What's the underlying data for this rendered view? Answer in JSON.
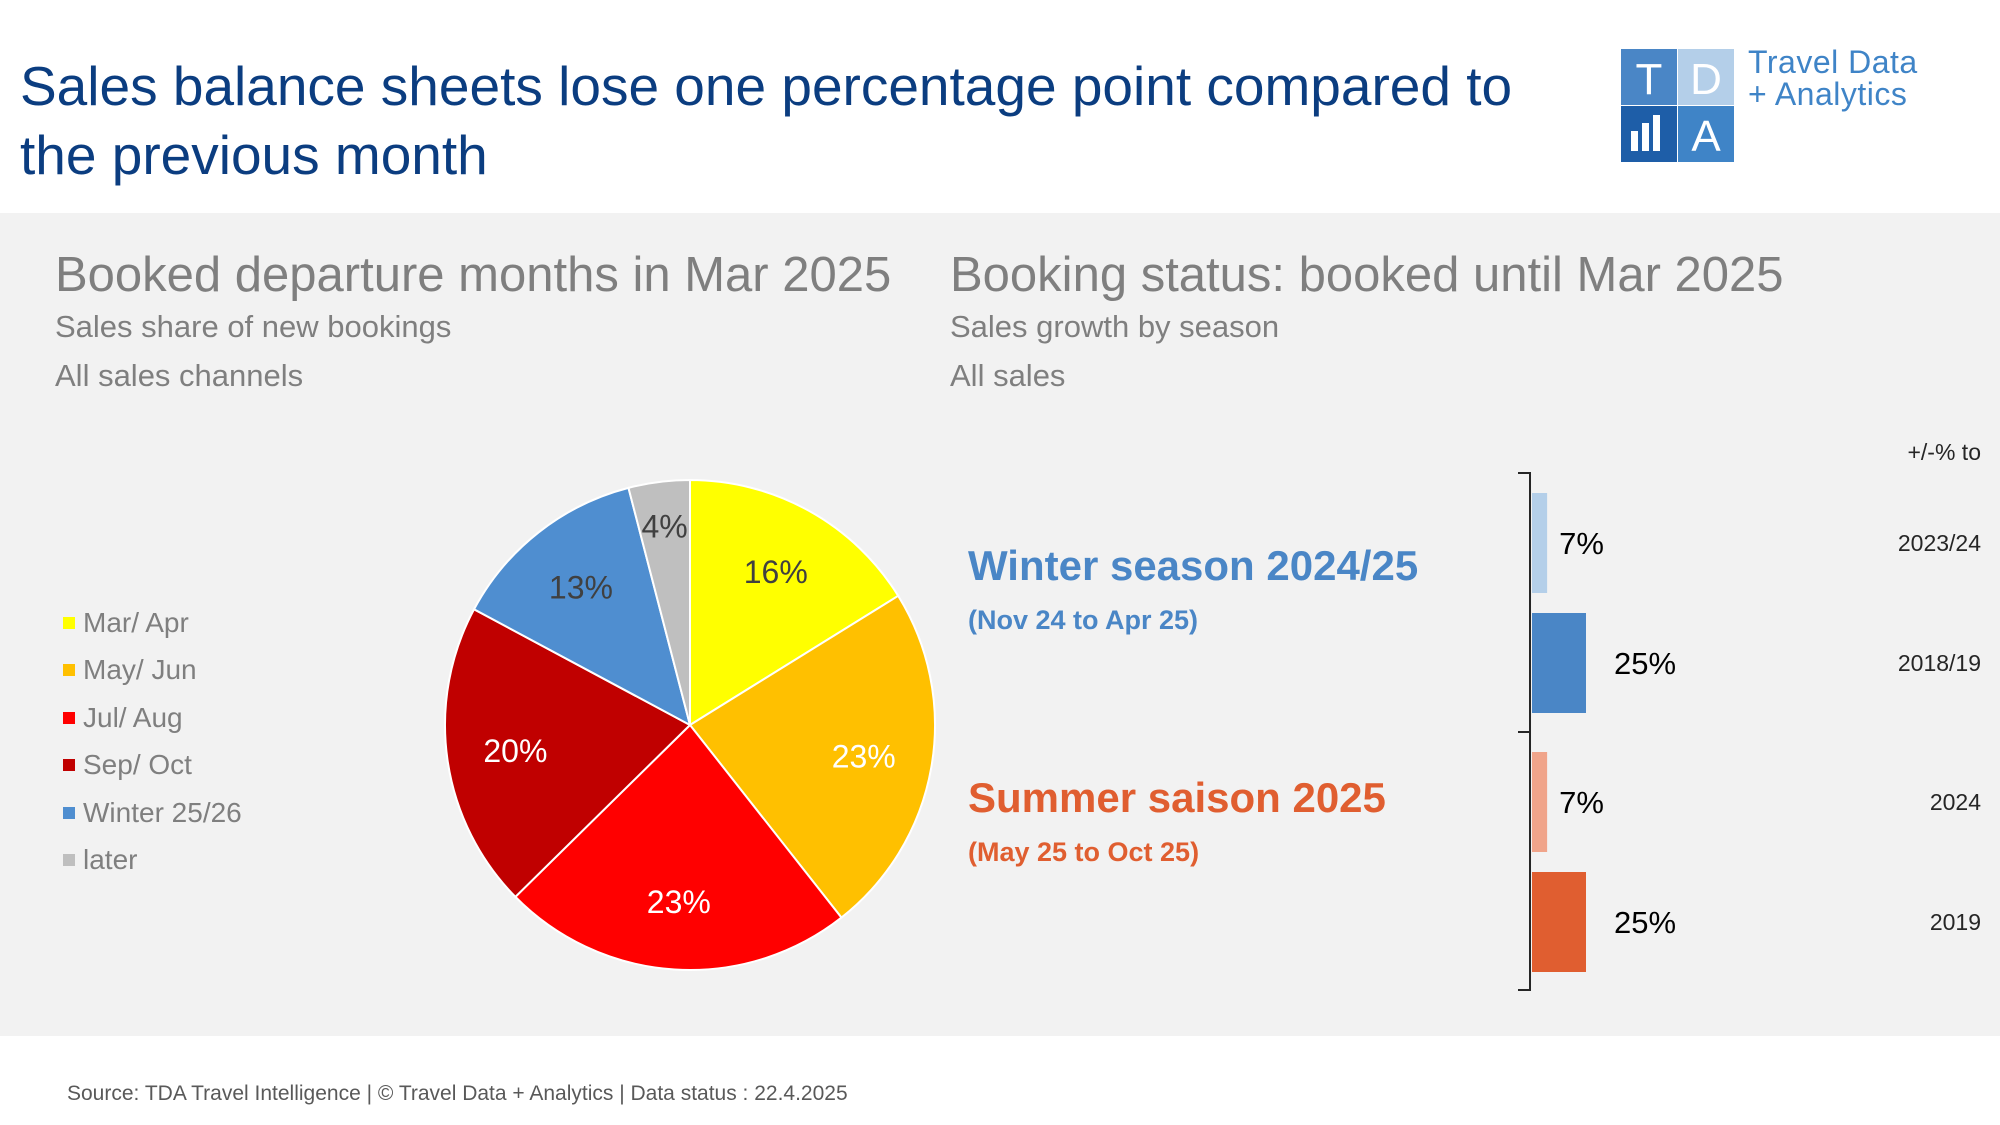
{
  "title": "Sales balance sheets lose one percentage point compared to the previous month",
  "logo": {
    "letters": [
      "T",
      "D",
      "A"
    ],
    "line1": "Travel Data",
    "line2": "+ Analytics"
  },
  "left_panel": {
    "title": "Booked departure months in Mar 2025",
    "subtitle1": "Sales share of new bookings",
    "subtitle2": "All sales channels"
  },
  "right_panel": {
    "title": "Booking status: booked until Mar 2025",
    "subtitle1": "Sales growth by season",
    "subtitle2": "All sales",
    "compare_header": "+/-% to"
  },
  "seasons": {
    "winter": {
      "title": "Winter season 2024/25",
      "range": "(Nov 24 to Apr 25)",
      "color": "#4a86c6"
    },
    "summer": {
      "title": "Summer saison 2025",
      "range": "(May 25 to Oct 25)",
      "color": "#e05e30"
    }
  },
  "chart_data": [
    {
      "type": "pie",
      "slices": [
        {
          "label": "Mar/ Apr",
          "value": 16,
          "display": "16%",
          "color": "#ffff00",
          "text_color": "#404040"
        },
        {
          "label": "May/ Jun",
          "value": 23,
          "display": "23%",
          "color": "#ffc000",
          "text_color": "#ffffff"
        },
        {
          "label": "Jul/ Aug",
          "value": 23,
          "display": "23%",
          "color": "#ff0000",
          "text_color": "#ffffff"
        },
        {
          "label": "Sep/ Oct",
          "value": 20,
          "display": "20%",
          "color": "#c00000",
          "text_color": "#ffffff"
        },
        {
          "label": "Winter 25/26",
          "value": 13,
          "display": "13%",
          "color": "#4f8ed0",
          "text_color": "#404040"
        },
        {
          "label": "later",
          "value": 4,
          "display": "4%",
          "color": "#bfbfbf",
          "text_color": "#404040"
        }
      ]
    },
    {
      "type": "bar",
      "orientation": "horizontal",
      "bars": [
        {
          "season": "Winter season 2024/25",
          "compare": "2023/24",
          "value": 7,
          "display": "7%",
          "color": "#b4cfe9"
        },
        {
          "season": "Winter season 2024/25",
          "compare": "2018/19",
          "value": 25,
          "display": "25%",
          "color": "#4a86c6"
        },
        {
          "season": "Summer saison 2025",
          "compare": "2024",
          "value": 7,
          "display": "7%",
          "color": "#f0a48a"
        },
        {
          "season": "Summer saison 2025",
          "compare": "2019",
          "value": 25,
          "display": "25%",
          "color": "#e05e30"
        }
      ]
    }
  ],
  "footer": "Source: TDA Travel Intelligence   |   © Travel Data + Analytics   | Data status : 22.4.2025"
}
